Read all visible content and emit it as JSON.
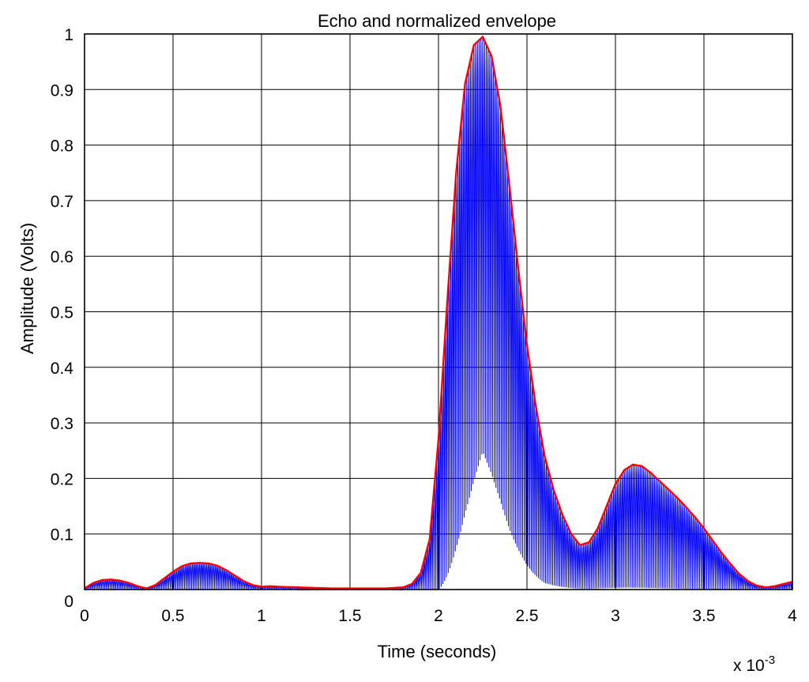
{
  "chart_data": {
    "type": "line",
    "title": "Echo and normalized envelope",
    "xlabel": "Time (seconds)",
    "ylabel": "Amplitude (Volts)",
    "x_exponent_label": "x 10",
    "x_exponent_power": "-3",
    "xlim": [
      0,
      4
    ],
    "ylim": [
      0,
      1
    ],
    "grid": true,
    "x_ticks": [
      0,
      0.5,
      1,
      1.5,
      2,
      2.5,
      3,
      3.5,
      4
    ],
    "x_tick_labels": [
      "0",
      "0.5",
      "1",
      "1.5",
      "2",
      "2.5",
      "3",
      "3.5",
      "4"
    ],
    "y_ticks": [
      0,
      0.1,
      0.2,
      0.3,
      0.4,
      0.5,
      0.6,
      0.7,
      0.8,
      0.9,
      1
    ],
    "y_tick_labels": [
      "0",
      "0.1",
      "0.2",
      "0.3",
      "0.4",
      "0.5",
      "0.6",
      "0.7",
      "0.8",
      "0.9",
      "1"
    ],
    "series": [
      {
        "role": "echo",
        "color": "#0000ff",
        "oscillation_cycles_per_unit": 100,
        "relative_floor": [
          [
            0,
            0
          ],
          [
            2.0,
            0
          ],
          [
            2.1,
            0.1
          ],
          [
            2.25,
            0.25
          ],
          [
            2.4,
            0.15
          ],
          [
            2.6,
            0.05
          ],
          [
            2.8,
            0.02
          ],
          [
            4,
            0
          ]
        ]
      },
      {
        "role": "envelope",
        "color": "#ff0000",
        "x": [
          0,
          0.05,
          0.1,
          0.15,
          0.2,
          0.25,
          0.3,
          0.35,
          0.4,
          0.45,
          0.5,
          0.55,
          0.6,
          0.65,
          0.7,
          0.75,
          0.8,
          0.85,
          0.9,
          0.95,
          1.0,
          1.05,
          1.1,
          1.2,
          1.3,
          1.4,
          1.5,
          1.6,
          1.7,
          1.8,
          1.85,
          1.9,
          1.95,
          2.0,
          2.05,
          2.1,
          2.15,
          2.2,
          2.25,
          2.3,
          2.35,
          2.4,
          2.45,
          2.5,
          2.55,
          2.6,
          2.65,
          2.7,
          2.75,
          2.8,
          2.85,
          2.9,
          2.95,
          3.0,
          3.05,
          3.1,
          3.15,
          3.2,
          3.25,
          3.3,
          3.35,
          3.4,
          3.45,
          3.5,
          3.55,
          3.6,
          3.65,
          3.7,
          3.75,
          3.8,
          3.85,
          3.9,
          3.95,
          4.0
        ],
        "y": [
          0.002,
          0.012,
          0.017,
          0.018,
          0.016,
          0.012,
          0.006,
          0.002,
          0.008,
          0.02,
          0.032,
          0.042,
          0.047,
          0.048,
          0.047,
          0.043,
          0.035,
          0.025,
          0.015,
          0.008,
          0.005,
          0.006,
          0.005,
          0.004,
          0.003,
          0.002,
          0.002,
          0.002,
          0.002,
          0.004,
          0.01,
          0.03,
          0.09,
          0.27,
          0.52,
          0.75,
          0.91,
          0.98,
          0.995,
          0.96,
          0.87,
          0.73,
          0.58,
          0.44,
          0.33,
          0.24,
          0.18,
          0.135,
          0.1,
          0.08,
          0.085,
          0.11,
          0.15,
          0.19,
          0.215,
          0.225,
          0.222,
          0.21,
          0.195,
          0.18,
          0.165,
          0.148,
          0.13,
          0.11,
          0.088,
          0.066,
          0.046,
          0.028,
          0.015,
          0.007,
          0.004,
          0.006,
          0.01,
          0.014
        ]
      }
    ]
  }
}
